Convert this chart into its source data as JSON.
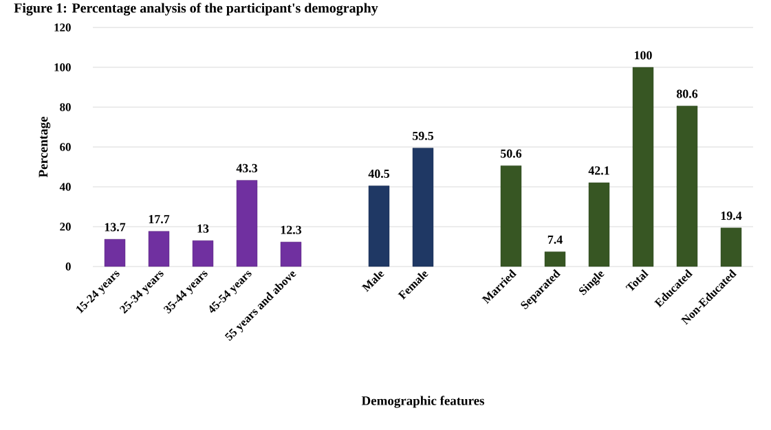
{
  "chart_data": {
    "type": "bar",
    "title": "Figure 1: Percentage analysis of the participant's demography",
    "xlabel": "Demographic features",
    "ylabel": "Percentage",
    "categories": [
      "15-24 years",
      "25-34 years",
      "35-44 years",
      "45-54 years",
      "55 years and above",
      null,
      "Male",
      "Female",
      null,
      "Married",
      "Separated",
      "Single",
      "Total",
      "Educated",
      "Non-Educated"
    ],
    "values": [
      13.7,
      17.7,
      13,
      43.3,
      12.3,
      null,
      40.5,
      59.5,
      null,
      50.6,
      7.4,
      42.1,
      100,
      80.6,
      19.4
    ],
    "colors": [
      "#7030a0",
      "#7030a0",
      "#7030a0",
      "#7030a0",
      "#7030a0",
      null,
      "#1f3864",
      "#1f3864",
      null,
      "#375623",
      "#375623",
      "#375623",
      "#375623",
      "#375623",
      "#375623"
    ],
    "ylim": [
      0,
      120
    ],
    "yticks": [
      0,
      20,
      40,
      60,
      80,
      100,
      120
    ],
    "grid": "y",
    "data_labels": true
  }
}
